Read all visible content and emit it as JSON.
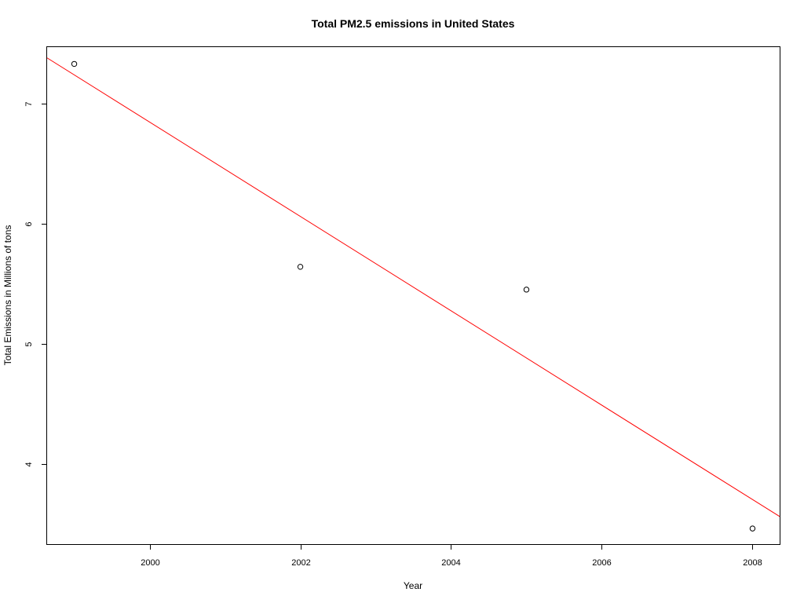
{
  "chart_data": {
    "type": "scatter",
    "title": "Total PM2.5 emissions in United States",
    "xlabel": "Year",
    "ylabel": "Total Emissions in Millions of tons",
    "xlim": [
      1998.64,
      2008.36
    ],
    "ylim": [
      3.33,
      7.47
    ],
    "xticks": [
      2000,
      2002,
      2004,
      2006,
      2008
    ],
    "yticks": [
      4,
      5,
      6,
      7
    ],
    "x_tick_labels": [
      "2000",
      "2002",
      "2004",
      "2006",
      "2008"
    ],
    "y_tick_labels": [
      "4",
      "5",
      "6",
      "7"
    ],
    "grid": false,
    "legend": "none",
    "series": [
      {
        "x": [
          1999,
          2002,
          2005,
          2008
        ],
        "y": [
          7.33,
          5.64,
          5.45,
          3.46
        ],
        "marker": "open-circle",
        "color": "#000000"
      }
    ],
    "trend_line": {
      "color": "#ff0000",
      "x": [
        1998.64,
        2008.36
      ],
      "y": [
        7.38,
        3.56
      ]
    }
  }
}
